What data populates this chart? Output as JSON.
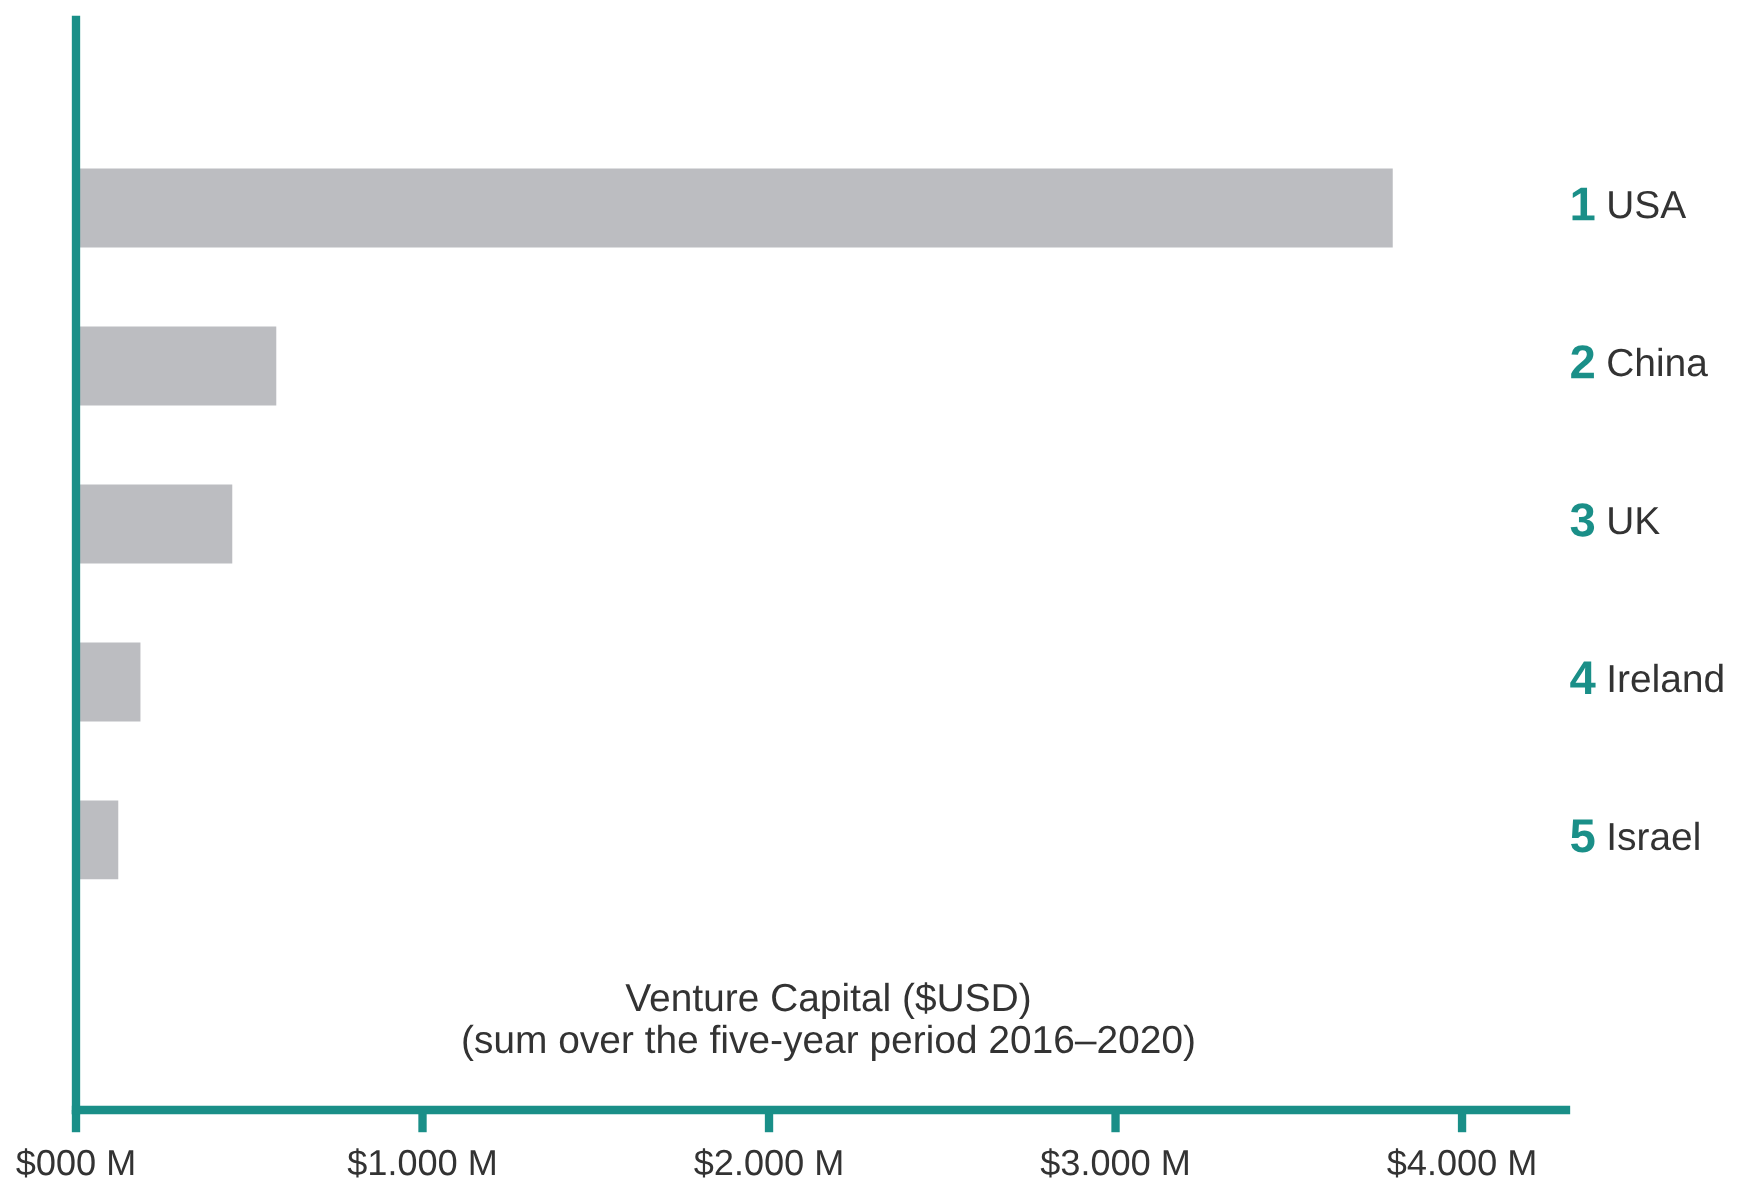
{
  "chart_data": {
    "type": "bar",
    "orientation": "horizontal",
    "xlabel": "Venture Capital ($USD)\n(sum over the five-year period 2016–2020)",
    "categories": [
      "USA",
      "China",
      "UK",
      "Ireland",
      "Israel"
    ],
    "values": [
      3800,
      578,
      451,
      186,
      122
    ],
    "color": "#bcbdc1",
    "xlim": [
      0,
      4300
    ],
    "xticks": [
      {
        "value": 0,
        "label": "$000 M"
      },
      {
        "value": 1000,
        "label": "$1.000 M"
      },
      {
        "value": 2000,
        "label": "$2.000 M"
      },
      {
        "value": 3000,
        "label": "$3.000 M"
      },
      {
        "value": 4000,
        "label": "$4.000 M"
      }
    ],
    "annotations": [
      "1",
      "2",
      "3",
      "4",
      "5"
    ],
    "grid": false,
    "legend": false
  }
}
